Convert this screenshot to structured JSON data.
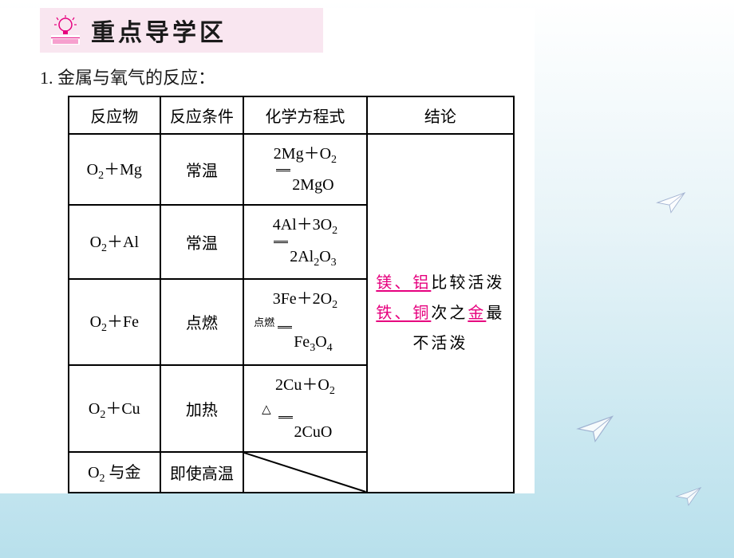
{
  "banner": {
    "title": "重点导学区"
  },
  "section": {
    "number": "1.",
    "title": "金属与氧气的反应："
  },
  "table": {
    "headers": {
      "reactant": "反应物",
      "condition": "反应条件",
      "equation": "化学方程式",
      "conclusion": "结论"
    },
    "rows": [
      {
        "reactant_html": "O<sub>2</sub>＋Mg",
        "condition": "常温",
        "eq_top": "2Mg＋O<sub>2</sub>",
        "eq_bottom": "2MgO",
        "cond_above": ""
      },
      {
        "reactant_html": "O<sub>2</sub>＋Al",
        "condition": "常温",
        "eq_top": "4Al＋3O<sub>2</sub>",
        "eq_bottom": "2Al<sub>2</sub>O<sub>3</sub>",
        "cond_above": ""
      },
      {
        "reactant_html": "O<sub>2</sub>＋Fe",
        "condition": "点燃",
        "eq_top": "3Fe＋2O<sub>2</sub>",
        "eq_bottom": "Fe<sub>3</sub>O<sub>4</sub>",
        "cond_above": "点燃"
      },
      {
        "reactant_html": "O<sub>2</sub>＋Cu",
        "condition": "加热",
        "eq_top": "2Cu＋O<sub>2</sub>",
        "eq_bottom": "2CuO",
        "cond_above": "△"
      },
      {
        "reactant_html": "O<sub>2</sub> 与金",
        "condition": "即使高温",
        "eq_top": "",
        "eq_bottom": "",
        "cond_above": ""
      }
    ],
    "conclusion": {
      "hl1": "镁、铝",
      "txt1": "比较活泼",
      "hl2": "铁、铜",
      "txt2": "次之",
      "hl3": "金",
      "txt3": "最不活泼"
    }
  },
  "colors": {
    "highlight": "#e6007e",
    "banner_bg": "#f9e6f0",
    "bg_top": "#ffffff",
    "bg_bottom": "#b8e0ec"
  }
}
